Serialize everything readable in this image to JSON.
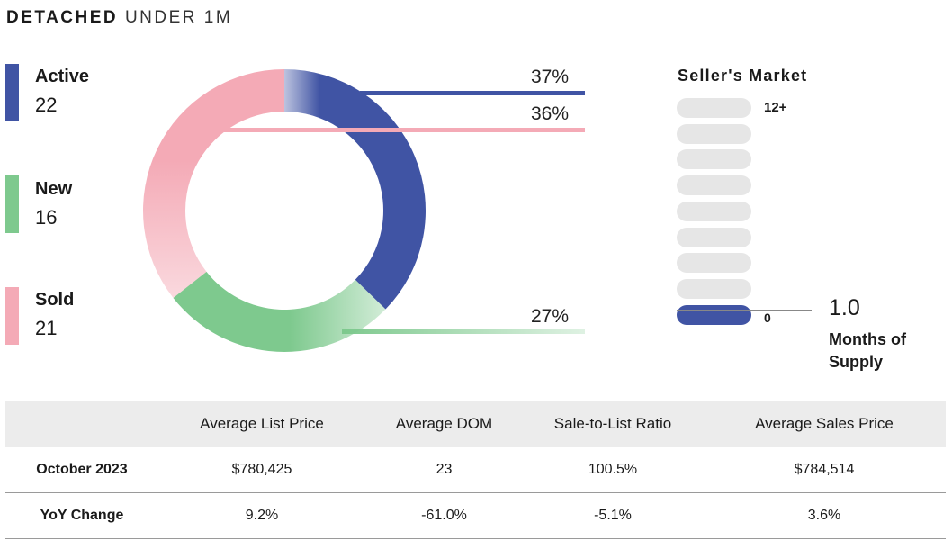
{
  "title": {
    "bold": "DETACHED",
    "light": "UNDER 1M"
  },
  "chart_data": {
    "type": "pie",
    "title": "DETACHED UNDER 1M",
    "categories": [
      "Active",
      "New",
      "Sold"
    ],
    "values": [
      22,
      16,
      21
    ],
    "percent_labels": [
      "37%",
      "27%",
      "36%"
    ],
    "colors": [
      "#4054a4",
      "#7ec98e",
      "#f4aab6"
    ],
    "donut": true
  },
  "legend": [
    {
      "label": "Active",
      "value": "22",
      "color": "#4054a4"
    },
    {
      "label": "New",
      "value": "16",
      "color": "#7ec98e"
    },
    {
      "label": "Sold",
      "value": "21",
      "color": "#f4aab6"
    }
  ],
  "sellers_market": {
    "title": "Seller's Market",
    "top_label": "12+",
    "zero_label": "0",
    "value": "1.0",
    "subtitle": "Months of Supply",
    "filled_level": 1,
    "total_levels": 9,
    "active_color": "#4054a4"
  },
  "table": {
    "headers": [
      "",
      "Average List Price",
      "Average DOM",
      "Sale-to-List Ratio",
      "Average Sales Price"
    ],
    "rows": [
      [
        "October 2023",
        "$780,425",
        "23",
        "100.5%",
        "$784,514"
      ],
      [
        "YoY Change",
        "9.2%",
        "-61.0%",
        "-5.1%",
        "3.6%"
      ]
    ]
  }
}
